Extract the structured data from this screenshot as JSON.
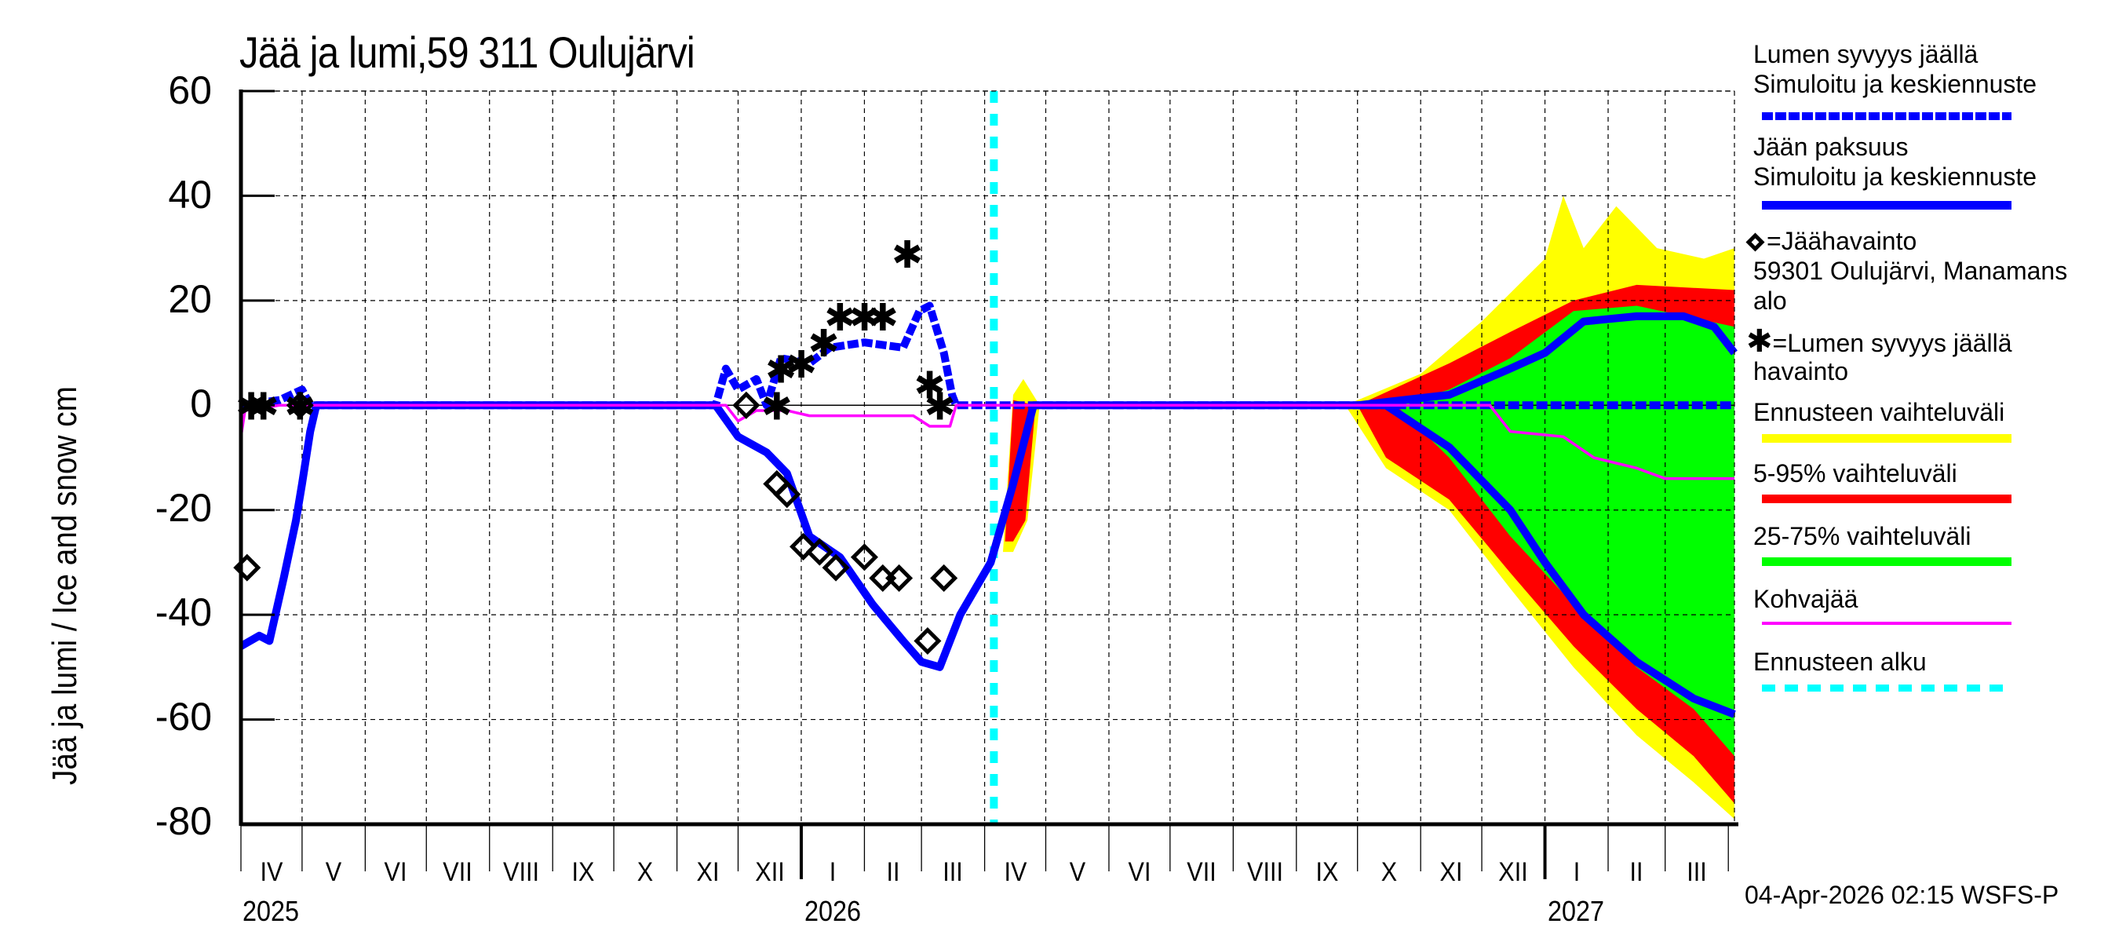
{
  "title": "Jää ja lumi,59 311 Oulujärvi",
  "y_axis_label": "Jää ja lumi / Ice and snow    cm",
  "y_ticks": [
    "60",
    "40",
    "20",
    "0",
    "-20",
    "-40",
    "-60",
    "-80"
  ],
  "x_months": [
    "IV",
    "V",
    "VI",
    "VII",
    "VIII",
    "IX",
    "X",
    "XI",
    "XII",
    "I",
    "II",
    "III",
    "IV",
    "V",
    "VI",
    "VII",
    "VIII",
    "IX",
    "X",
    "XI",
    "XII",
    "I",
    "II",
    "III"
  ],
  "x_years": [
    "2025",
    "2026",
    "2027"
  ],
  "legend": {
    "snow_sim_title": "Lumen syvyys jäällä",
    "snow_sim_sub": "Simuloitu ja keskiennuste",
    "ice_sim_title": "Jään paksuus",
    "ice_sim_sub": "Simuloitu ja keskiennuste",
    "ice_obs": "=Jäähavainto",
    "ice_obs_station": "59301 Oulujärvi, Manamans",
    "ice_obs_station2": "alo",
    "snow_obs": "=Lumen syvyys jäällä",
    "snow_obs2": "havainto",
    "range_full": "Ennusteen vaihteluväli",
    "range_5_95": "5-95% vaihteluväli",
    "range_25_75": "25-75% vaihteluväli",
    "slush": "Kohvajää",
    "forecast_start": "Ennusteen alku"
  },
  "footer": "04-Apr-2026 02:15 WSFS-P",
  "colors": {
    "simulated": "#0000ff",
    "range_full": "#ffff00",
    "range_5_95": "#ff0000",
    "range_25_75": "#00ff00",
    "slush": "#ff00ff",
    "forecast_start": "#00ffff",
    "grid": "#000000"
  },
  "chart_data": {
    "type": "line",
    "title": "Jää ja lumi,59 311 Oulujärvi",
    "xlabel": "",
    "ylabel": "Jää ja lumi / Ice and snow cm",
    "ylim": [
      -80,
      60
    ],
    "xlim": [
      "2025-04-01",
      "2027-04-04"
    ],
    "grid": true,
    "legend_position": "right",
    "forecast_start": "2026-04-04",
    "series": [
      {
        "name": "Lumen syvyys jäällä – Simuloitu ja keskiennuste",
        "style": "dashed",
        "color": "#0000ff",
        "points": [
          [
            "2025-04-01",
            0
          ],
          [
            "2025-04-20",
            1
          ],
          [
            "2025-05-01",
            3
          ],
          [
            "2025-05-05",
            0
          ],
          [
            "2025-11-20",
            0
          ],
          [
            "2025-11-25",
            7
          ],
          [
            "2025-12-01",
            3
          ],
          [
            "2025-12-10",
            5
          ],
          [
            "2025-12-15",
            0
          ],
          [
            "2025-12-22",
            9
          ],
          [
            "2026-01-05",
            8
          ],
          [
            "2026-01-15",
            11
          ],
          [
            "2026-02-01",
            12
          ],
          [
            "2026-02-20",
            11
          ],
          [
            "2026-02-28",
            18
          ],
          [
            "2026-03-05",
            19
          ],
          [
            "2026-03-12",
            10
          ],
          [
            "2026-03-16",
            2
          ],
          [
            "2026-03-18",
            0
          ],
          [
            "2027-04-04",
            0
          ]
        ]
      },
      {
        "name": "Lumen syvyys jäällä – keskiennuste (forecast)",
        "style": "solid",
        "color": "#0000ff",
        "points": [
          [
            "2026-10-01",
            0
          ],
          [
            "2026-11-15",
            2
          ],
          [
            "2026-12-15",
            7
          ],
          [
            "2027-01-01",
            10
          ],
          [
            "2027-01-20",
            16
          ],
          [
            "2027-02-15",
            17
          ],
          [
            "2027-03-10",
            17
          ],
          [
            "2027-03-25",
            15
          ],
          [
            "2027-04-04",
            10
          ]
        ]
      },
      {
        "name": "Jään paksuus – Simuloitu ja keskiennuste",
        "style": "solid",
        "color": "#0000ff",
        "points": [
          [
            "2025-04-01",
            -46
          ],
          [
            "2025-04-10",
            -44
          ],
          [
            "2025-04-15",
            -45
          ],
          [
            "2025-04-22",
            -33
          ],
          [
            "2025-04-28",
            -22
          ],
          [
            "2025-05-01",
            -15
          ],
          [
            "2025-05-05",
            -5
          ],
          [
            "2025-05-08",
            0
          ],
          [
            "2025-11-20",
            0
          ],
          [
            "2025-12-01",
            -6
          ],
          [
            "2025-12-15",
            -9
          ],
          [
            "2025-12-25",
            -13
          ],
          [
            "2026-01-05",
            -25
          ],
          [
            "2026-01-20",
            -29
          ],
          [
            "2026-02-05",
            -38
          ],
          [
            "2026-02-20",
            -45
          ],
          [
            "2026-03-01",
            -49
          ],
          [
            "2026-03-10",
            -50
          ],
          [
            "2026-03-20",
            -40
          ],
          [
            "2026-04-04",
            -30
          ],
          [
            "2026-04-15",
            -15
          ],
          [
            "2026-04-25",
            0
          ],
          [
            "2026-10-15",
            0
          ],
          [
            "2026-11-15",
            -8
          ],
          [
            "2026-12-15",
            -20
          ],
          [
            "2027-01-01",
            -30
          ],
          [
            "2027-01-20",
            -40
          ],
          [
            "2027-02-15",
            -49
          ],
          [
            "2027-03-15",
            -56
          ],
          [
            "2027-04-04",
            -59
          ]
        ]
      },
      {
        "name": "Jäähavainto (ice observation)",
        "style": "marker-diamond",
        "color": "#000000",
        "points": [
          [
            "2025-04-04",
            -31
          ],
          [
            "2025-04-30",
            0
          ],
          [
            "2025-12-05",
            0
          ],
          [
            "2025-12-20",
            -15
          ],
          [
            "2025-12-25",
            -17
          ],
          [
            "2026-01-02",
            -27
          ],
          [
            "2026-01-10",
            -28
          ],
          [
            "2026-01-18",
            -31
          ],
          [
            "2026-02-01",
            -29
          ],
          [
            "2026-02-10",
            -33
          ],
          [
            "2026-02-18",
            -33
          ],
          [
            "2026-03-04",
            -45
          ],
          [
            "2026-03-12",
            -33
          ]
        ]
      },
      {
        "name": "Lumen syvyys jäällä havainto (snow observation)",
        "style": "marker-asterisk",
        "color": "#000000",
        "points": [
          [
            "2025-04-06",
            0
          ],
          [
            "2025-04-12",
            0
          ],
          [
            "2025-04-30",
            0
          ],
          [
            "2025-12-20",
            0
          ],
          [
            "2025-12-22",
            7
          ],
          [
            "2026-01-01",
            8
          ],
          [
            "2026-01-12",
            12
          ],
          [
            "2026-01-20",
            17
          ],
          [
            "2026-02-01",
            17
          ],
          [
            "2026-02-10",
            17
          ],
          [
            "2026-02-22",
            29
          ],
          [
            "2026-03-05",
            4
          ],
          [
            "2026-03-10",
            0
          ]
        ]
      },
      {
        "name": "Kohvajää (slush ice)",
        "style": "solid",
        "color": "#ff00ff",
        "points": [
          [
            "2025-04-01",
            -6
          ],
          [
            "2025-04-03",
            -1
          ],
          [
            "2025-04-20",
            0
          ],
          [
            "2025-11-25",
            0
          ],
          [
            "2025-12-01",
            -3
          ],
          [
            "2025-12-10",
            -1
          ],
          [
            "2025-12-25",
            -1
          ],
          [
            "2026-01-05",
            -2
          ],
          [
            "2026-02-25",
            -2
          ],
          [
            "2026-03-05",
            -4
          ],
          [
            "2026-03-15",
            -4
          ],
          [
            "2026-03-18",
            0
          ],
          [
            "2026-12-05",
            0
          ],
          [
            "2026-12-15",
            -5
          ],
          [
            "2027-01-10",
            -6
          ],
          [
            "2027-01-25",
            -10
          ],
          [
            "2027-02-15",
            -12
          ],
          [
            "2027-03-01",
            -14
          ],
          [
            "2027-04-04",
            -14
          ]
        ]
      }
    ],
    "bands": [
      {
        "name": "Ennusteen vaihteluväli",
        "color": "#ffff00",
        "snow_upper": [
          [
            "2026-09-25",
            0
          ],
          [
            "2026-11-01",
            6
          ],
          [
            "2026-12-01",
            16
          ],
          [
            "2027-01-01",
            28
          ],
          [
            "2027-01-10",
            40
          ],
          [
            "2027-01-20",
            30
          ],
          [
            "2027-02-05",
            38
          ],
          [
            "2027-02-25",
            30
          ],
          [
            "2027-03-20",
            28
          ],
          [
            "2027-04-04",
            30
          ]
        ],
        "ice_lower": [
          [
            "2026-09-25",
            0
          ],
          [
            "2026-10-15",
            -12
          ],
          [
            "2026-11-15",
            -20
          ],
          [
            "2026-12-15",
            -35
          ],
          [
            "2027-01-15",
            -50
          ],
          [
            "2027-02-15",
            -63
          ],
          [
            "2027-03-15",
            -72
          ],
          [
            "2027-04-04",
            -79
          ]
        ]
      },
      {
        "name": "5-95% vaihteluväli",
        "color": "#ff0000",
        "snow_upper": [
          [
            "2026-10-01",
            0
          ],
          [
            "2026-11-15",
            8
          ],
          [
            "2026-12-15",
            14
          ],
          [
            "2027-01-15",
            20
          ],
          [
            "2027-02-15",
            23
          ],
          [
            "2027-04-04",
            22
          ]
        ],
        "ice_lower": [
          [
            "2026-10-01",
            0
          ],
          [
            "2026-10-15",
            -10
          ],
          [
            "2026-11-15",
            -18
          ],
          [
            "2026-12-15",
            -32
          ],
          [
            "2027-01-15",
            -46
          ],
          [
            "2027-02-15",
            -58
          ],
          [
            "2027-03-15",
            -67
          ],
          [
            "2027-04-04",
            -76
          ]
        ]
      },
      {
        "name": "25-75% vaihteluväli",
        "color": "#00ff00",
        "snow_upper": [
          [
            "2026-10-20",
            0
          ],
          [
            "2026-11-15",
            3
          ],
          [
            "2026-12-15",
            9
          ],
          [
            "2027-01-15",
            18
          ],
          [
            "2027-02-15",
            19
          ],
          [
            "2027-04-04",
            15
          ]
        ],
        "ice_lower": [
          [
            "2026-10-20",
            0
          ],
          [
            "2026-11-15",
            -10
          ],
          [
            "2026-12-15",
            -25
          ],
          [
            "2027-01-15",
            -38
          ],
          [
            "2027-02-15",
            -50
          ],
          [
            "2027-03-15",
            -58
          ],
          [
            "2027-04-04",
            -67
          ]
        ]
      }
    ]
  }
}
